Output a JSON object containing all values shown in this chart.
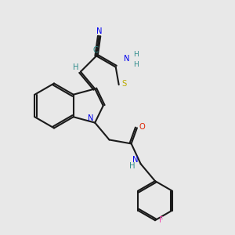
{
  "bg": "#e8e8e8",
  "bond_color": "#1a1a1a",
  "colors": {
    "C": "#2e8b8b",
    "N": "#0000ee",
    "O": "#dd2200",
    "S": "#bbaa00",
    "F": "#ee44aa",
    "H": "#2e8b8b"
  },
  "figsize": [
    3.0,
    3.0
  ],
  "dpi": 100
}
